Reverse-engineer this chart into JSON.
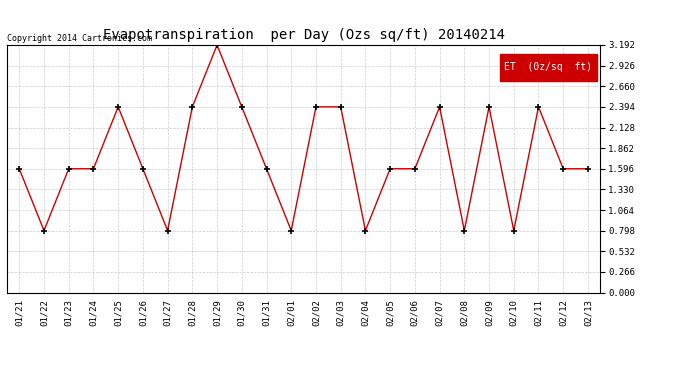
{
  "title": "Evapotranspiration  per Day (Ozs sq/ft) 20140214",
  "copyright": "Copyright 2014 Cartronics.com",
  "legend_label": "ET  (0z/sq  ft)",
  "legend_bg": "#cc0000",
  "legend_text_color": "#ffffff",
  "x_labels": [
    "01/21",
    "01/22",
    "01/23",
    "01/24",
    "01/25",
    "01/26",
    "01/27",
    "01/28",
    "01/29",
    "01/30",
    "01/31",
    "02/01",
    "02/02",
    "02/03",
    "02/04",
    "02/05",
    "02/06",
    "02/07",
    "02/08",
    "02/09",
    "02/10",
    "02/11",
    "02/12",
    "02/13"
  ],
  "y_values": [
    1.596,
    0.798,
    1.596,
    1.596,
    2.394,
    1.596,
    0.798,
    2.394,
    3.192,
    2.394,
    1.596,
    0.798,
    2.394,
    2.394,
    0.798,
    1.596,
    1.596,
    2.394,
    0.798,
    2.394,
    0.798,
    2.394,
    1.596,
    1.596
  ],
  "line_color": "#cc0000",
  "marker_color": "#000000",
  "grid_color": "#cccccc",
  "bg_color": "#ffffff",
  "ylim": [
    0.0,
    3.192
  ],
  "yticks": [
    0.0,
    0.266,
    0.532,
    0.798,
    1.064,
    1.33,
    1.596,
    1.862,
    2.128,
    2.394,
    2.66,
    2.926,
    3.192
  ],
  "title_fontsize": 10,
  "copyright_fontsize": 6,
  "tick_fontsize": 6.5,
  "legend_fontsize": 7
}
